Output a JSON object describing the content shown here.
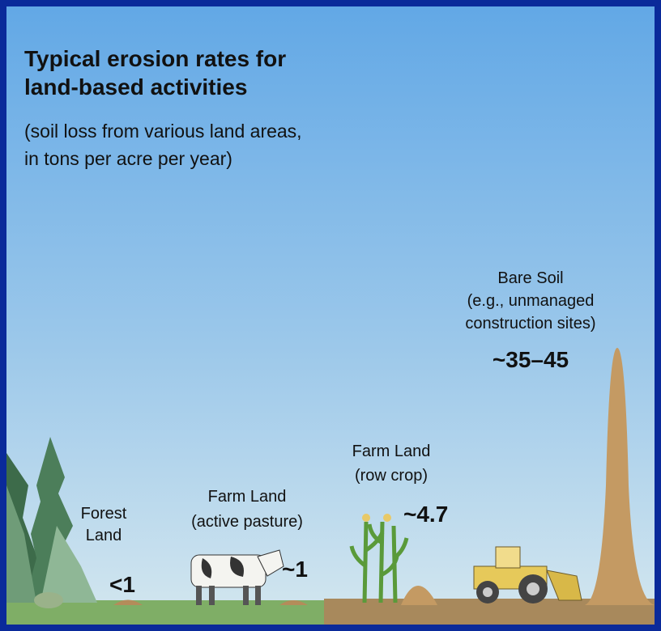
{
  "header": {
    "title": [
      "Typical erosion rates for",
      "land-based activities"
    ],
    "subtitle": [
      "(soil loss from various land areas,",
      "in tons per acre per year)"
    ]
  },
  "items": [
    {
      "label": [
        "Forest",
        "Land"
      ],
      "value": "<1"
    },
    {
      "label": [
        "Farm Land",
        "(active pasture)"
      ],
      "value": "~1"
    },
    {
      "label": [
        "Farm Land",
        "(row crop)"
      ],
      "value": "~4.7"
    },
    {
      "label": [
        "Bare Soil",
        "(e.g., unmanaged",
        "construction sites)"
      ],
      "value": "~35–45"
    }
  ]
}
